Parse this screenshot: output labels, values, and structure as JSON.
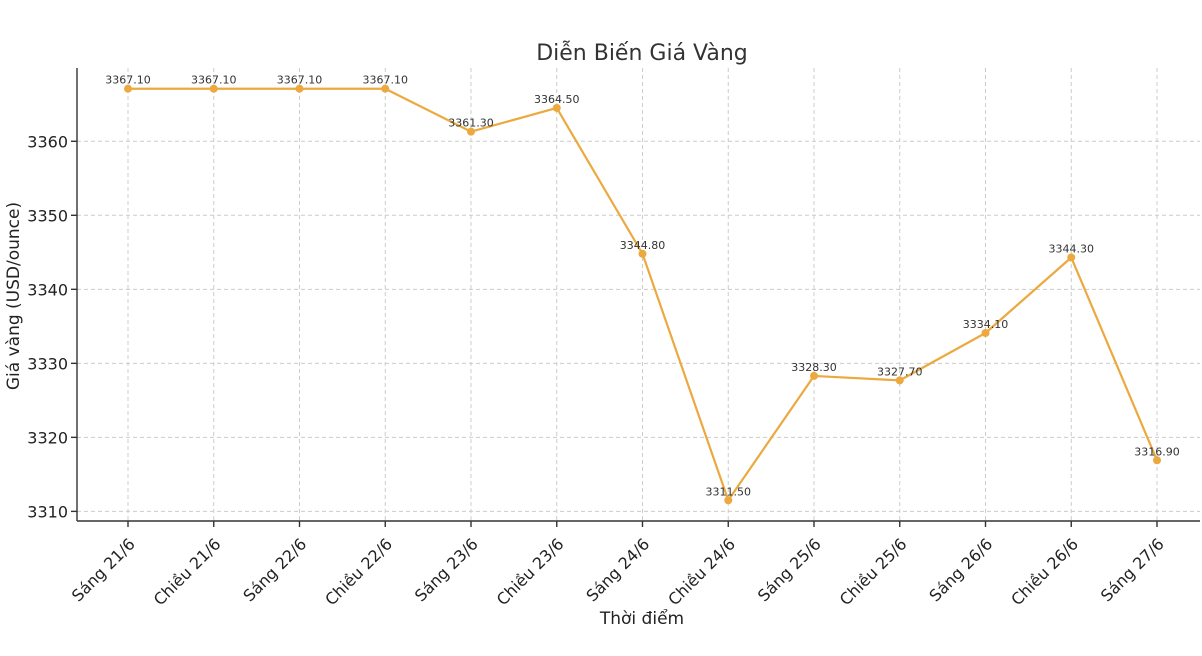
{
  "chart_data": {
    "type": "line",
    "title": "Diễn Biến Giá Vàng",
    "xlabel": "Thời điểm",
    "ylabel": "Giá vàng (USD/ounce)",
    "categories": [
      "Sáng 21/6",
      "Chiều 21/6",
      "Sáng 22/6",
      "Chiều 22/6",
      "Sáng 23/6",
      "Chiều 23/6",
      "Sáng 24/6",
      "Chiều 24/6",
      "Sáng 25/6",
      "Chiều 25/6",
      "Sáng 26/6",
      "Chiều 26/6",
      "Sáng 27/6"
    ],
    "series": [
      {
        "values": [
          3367.1,
          3367.1,
          3367.1,
          3367.1,
          3361.3,
          3364.5,
          3344.8,
          3311.5,
          3328.3,
          3327.7,
          3334.1,
          3344.3,
          3316.9
        ],
        "data_labels": [
          "3367.10",
          "3367.10",
          "3367.10",
          "3367.10",
          "3361.30",
          "3364.50",
          "3344.80",
          "3311.50",
          "3328.30",
          "3327.70",
          "3334.10",
          "3344.30",
          "3316.90"
        ],
        "color": "#EBA93F"
      }
    ],
    "yticks": [
      3310,
      3320,
      3330,
      3340,
      3350,
      3360
    ],
    "ytick_labels": [
      "3310",
      "3320",
      "3330",
      "3340",
      "3350",
      "3360"
    ],
    "ylim": [
      3308.7,
      3369.9
    ],
    "grid": true,
    "legend": "none"
  }
}
